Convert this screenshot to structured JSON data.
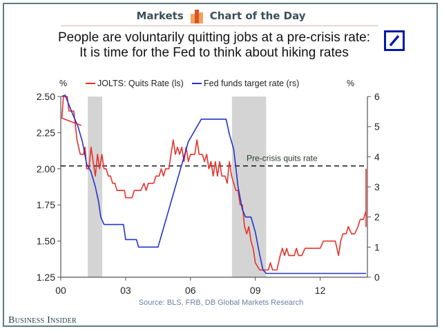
{
  "header": {
    "left_label": "Markets",
    "right_label": "Chart of the Day",
    "icon": "bar-chart-icon",
    "icon_colors": [
      "#f5a25a",
      "#d9532b"
    ]
  },
  "title_line1": "People are voluntarily quitting jobs at a pre-crisis rate:",
  "title_line2": "It is time for the Fed to think about hiking rates",
  "logo": "deutsche-bank-logo",
  "source": "Source: BLS, FRB, DB Global Markets Research",
  "brand": "Business Insider",
  "chart_data": {
    "type": "line",
    "title": "People are voluntarily quitting jobs at a pre-crisis rate: It is time for the Fed to think about hiking rates",
    "left_axis_unit": "%",
    "right_axis_unit": "%",
    "xlabel": "",
    "x_range": [
      2000,
      2014
    ],
    "x_ticks": [
      {
        "value": 2000,
        "label": "00"
      },
      {
        "value": 2003,
        "label": "03"
      },
      {
        "value": 2006,
        "label": "06"
      },
      {
        "value": 2009,
        "label": "09"
      },
      {
        "value": 2012,
        "label": "12"
      }
    ],
    "left_ylim": [
      1.25,
      2.5
    ],
    "left_ticks": [
      "1.25",
      "1.50",
      "1.75",
      "2.00",
      "2.25",
      "2.50"
    ],
    "right_ylim": [
      0,
      6
    ],
    "right_ticks": [
      "0",
      "1",
      "2",
      "3",
      "4",
      "5",
      "6"
    ],
    "recessions": [
      [
        2001.25,
        2001.92
      ],
      [
        2007.92,
        2009.5
      ]
    ],
    "reference_line": {
      "label": "Pre-crisis quits rate",
      "axis": "left",
      "value": 2.02,
      "style": "dashed"
    },
    "legend_position": "top",
    "colors": {
      "quits": "#e8302a",
      "fed": "#2233cc",
      "recession": "#d4d4d4",
      "reference": "#111111"
    },
    "series": [
      {
        "name": "JOLTS: Quits Rate (ls)",
        "axis": "left",
        "points": [
          [
            2000.95,
            2.3
          ],
          [
            2000.05,
            2.35
          ],
          [
            2000.12,
            2.5
          ],
          [
            2000.3,
            2.5
          ],
          [
            2000.38,
            2.4
          ],
          [
            2000.6,
            2.4
          ],
          [
            2000.75,
            2.2
          ],
          [
            2000.9,
            2.1
          ],
          [
            2001.05,
            2.1
          ],
          [
            2001.12,
            2.15
          ],
          [
            2001.2,
            2.0
          ],
          [
            2001.3,
            2.0
          ],
          [
            2001.4,
            2.15
          ],
          [
            2001.5,
            2.05
          ],
          [
            2001.6,
            1.95
          ],
          [
            2001.7,
            2.1
          ],
          [
            2001.8,
            2.0
          ],
          [
            2001.9,
            2.1
          ],
          [
            2002.0,
            2.0
          ],
          [
            2002.1,
            2.0
          ],
          [
            2002.2,
            1.95
          ],
          [
            2002.3,
            1.95
          ],
          [
            2002.4,
            1.9
          ],
          [
            2002.5,
            1.9
          ],
          [
            2002.6,
            1.85
          ],
          [
            2002.8,
            1.85
          ],
          [
            2002.95,
            1.85
          ],
          [
            2003.0,
            1.8
          ],
          [
            2003.3,
            1.8
          ],
          [
            2003.4,
            1.85
          ],
          [
            2003.7,
            1.85
          ],
          [
            2003.85,
            1.9
          ],
          [
            2003.95,
            1.85
          ],
          [
            2004.05,
            1.9
          ],
          [
            2004.3,
            1.9
          ],
          [
            2004.4,
            1.95
          ],
          [
            2004.55,
            1.95
          ],
          [
            2004.65,
            2.0
          ],
          [
            2004.75,
            1.95
          ],
          [
            2004.85,
            2.0
          ],
          [
            2005.0,
            2.0
          ],
          [
            2005.1,
            2.1
          ],
          [
            2005.2,
            2.2
          ],
          [
            2005.3,
            2.1
          ],
          [
            2005.4,
            2.15
          ],
          [
            2005.5,
            2.1
          ],
          [
            2005.6,
            2.15
          ],
          [
            2005.7,
            2.05
          ],
          [
            2005.8,
            2.15
          ],
          [
            2005.9,
            2.05
          ],
          [
            2006.0,
            2.1
          ],
          [
            2006.2,
            2.1
          ],
          [
            2006.3,
            2.2
          ],
          [
            2006.4,
            2.1
          ],
          [
            2006.55,
            2.1
          ],
          [
            2006.65,
            2.05
          ],
          [
            2006.75,
            2.1
          ],
          [
            2006.85,
            2.0
          ],
          [
            2006.95,
            2.05
          ],
          [
            2007.05,
            1.95
          ],
          [
            2007.15,
            2.05
          ],
          [
            2007.25,
            1.95
          ],
          [
            2007.35,
            2.05
          ],
          [
            2007.45,
            1.95
          ],
          [
            2007.6,
            1.95
          ],
          [
            2007.7,
            1.9
          ],
          [
            2007.8,
            2.05
          ],
          [
            2007.9,
            1.95
          ],
          [
            2008.0,
            1.9
          ],
          [
            2008.1,
            1.85
          ],
          [
            2008.2,
            1.85
          ],
          [
            2008.3,
            1.75
          ],
          [
            2008.4,
            1.75
          ],
          [
            2008.5,
            1.6
          ],
          [
            2008.6,
            1.55
          ],
          [
            2008.7,
            1.6
          ],
          [
            2008.8,
            1.5
          ],
          [
            2008.9,
            1.45
          ],
          [
            2009.0,
            1.35
          ],
          [
            2009.2,
            1.3
          ],
          [
            2009.45,
            1.3
          ],
          [
            2009.6,
            1.3
          ],
          [
            2009.7,
            1.35
          ],
          [
            2009.8,
            1.3
          ],
          [
            2010.0,
            1.3
          ],
          [
            2010.15,
            1.4
          ],
          [
            2010.25,
            1.45
          ],
          [
            2010.35,
            1.4
          ],
          [
            2010.45,
            1.45
          ],
          [
            2010.55,
            1.4
          ],
          [
            2010.8,
            1.4
          ],
          [
            2010.9,
            1.45
          ],
          [
            2011.0,
            1.4
          ],
          [
            2011.15,
            1.4
          ],
          [
            2011.3,
            1.45
          ],
          [
            2011.6,
            1.45
          ],
          [
            2012.0,
            1.45
          ],
          [
            2012.15,
            1.5
          ],
          [
            2012.5,
            1.5
          ],
          [
            2012.7,
            1.5
          ],
          [
            2012.85,
            1.4
          ],
          [
            2012.95,
            1.5
          ],
          [
            2013.05,
            1.55
          ],
          [
            2013.2,
            1.55
          ],
          [
            2013.3,
            1.6
          ],
          [
            2013.45,
            1.55
          ],
          [
            2013.6,
            1.55
          ],
          [
            2013.75,
            1.6
          ],
          [
            2013.85,
            1.65
          ],
          [
            2014.0,
            1.65
          ],
          [
            2014.1,
            1.7
          ],
          [
            2014.2,
            1.7
          ],
          [
            2014.3,
            1.6
          ],
          [
            2014.4,
            1.7
          ],
          [
            2014.6,
            1.7
          ],
          [
            2014.75,
            1.8
          ],
          [
            2014.9,
            1.8
          ],
          [
            2015.0,
            1.8
          ],
          [
            2015.1,
            1.75
          ],
          [
            2015.2,
            1.8
          ],
          [
            2015.5,
            1.8
          ],
          [
            2015.6,
            2.0
          ]
        ]
      },
      {
        "name": "Fed funds target rate (rs)",
        "axis": "right",
        "points": [
          [
            2000.0,
            6.0
          ],
          [
            2000.2,
            6.5
          ],
          [
            2000.5,
            5.5
          ],
          [
            2000.8,
            5.0
          ],
          [
            2001.0,
            4.5
          ],
          [
            2001.2,
            3.75
          ],
          [
            2001.4,
            3.5
          ],
          [
            2001.6,
            3.0
          ],
          [
            2001.75,
            2.5
          ],
          [
            2001.85,
            2.0
          ],
          [
            2002.0,
            1.75
          ],
          [
            2002.9,
            1.75
          ],
          [
            2003.0,
            1.25
          ],
          [
            2003.5,
            1.25
          ],
          [
            2003.6,
            1.0
          ],
          [
            2004.5,
            1.0
          ],
          [
            2004.7,
            1.5
          ],
          [
            2005.0,
            2.25
          ],
          [
            2005.3,
            3.0
          ],
          [
            2005.6,
            3.75
          ],
          [
            2005.9,
            4.5
          ],
          [
            2006.3,
            5.0
          ],
          [
            2006.5,
            5.25
          ],
          [
            2007.65,
            5.25
          ],
          [
            2007.8,
            4.75
          ],
          [
            2008.0,
            4.25
          ],
          [
            2008.2,
            3.0
          ],
          [
            2008.4,
            2.25
          ],
          [
            2008.55,
            2.0
          ],
          [
            2008.8,
            2.0
          ],
          [
            2009.0,
            1.5
          ],
          [
            2009.2,
            0.75
          ],
          [
            2009.35,
            0.25
          ],
          [
            2009.5,
            0.125
          ],
          [
            2015.8,
            0.125
          ]
        ]
      }
    ]
  }
}
